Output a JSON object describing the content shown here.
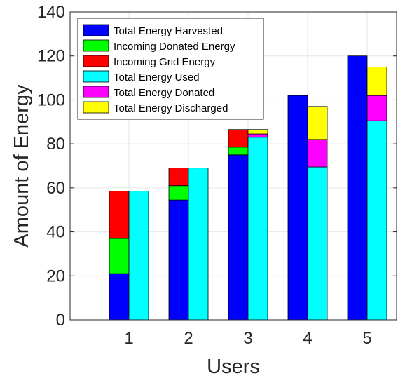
{
  "chart_data": {
    "type": "bar",
    "stacked": true,
    "grouped": true,
    "title": "",
    "xlabel": "Users",
    "ylabel": "Amount of Energy",
    "ylim": [
      0,
      140
    ],
    "yticks": [
      0,
      20,
      40,
      60,
      80,
      100,
      120,
      140
    ],
    "categories": [
      "1",
      "2",
      "3",
      "4",
      "5"
    ],
    "grid": true,
    "legend_position": "top-left",
    "groups": [
      {
        "name": "incoming",
        "series": [
          {
            "name": "Total Energy Harvested",
            "color": "#0000ff",
            "values": [
              21,
              54.5,
              75,
              102,
              120
            ]
          },
          {
            "name": "Incoming Donated Energy",
            "color": "#00ff00",
            "values": [
              16,
              6.5,
              3.5,
              0,
              0
            ]
          },
          {
            "name": "Incoming Grid Energy",
            "color": "#ff0000",
            "values": [
              21.5,
              8,
              8,
              0,
              0
            ]
          }
        ]
      },
      {
        "name": "outgoing",
        "series": [
          {
            "name": "Total Energy Used",
            "color": "#00ffff",
            "values": [
              58.5,
              69,
              83,
              69.5,
              90.5
            ]
          },
          {
            "name": "Total Energy Donated",
            "color": "#ff00ff",
            "values": [
              0,
              0,
              1.5,
              12.5,
              11.5
            ]
          },
          {
            "name": "Total Energy Discharged",
            "color": "#ffff00",
            "values": [
              0,
              0,
              2,
              15,
              13
            ]
          }
        ]
      }
    ]
  }
}
